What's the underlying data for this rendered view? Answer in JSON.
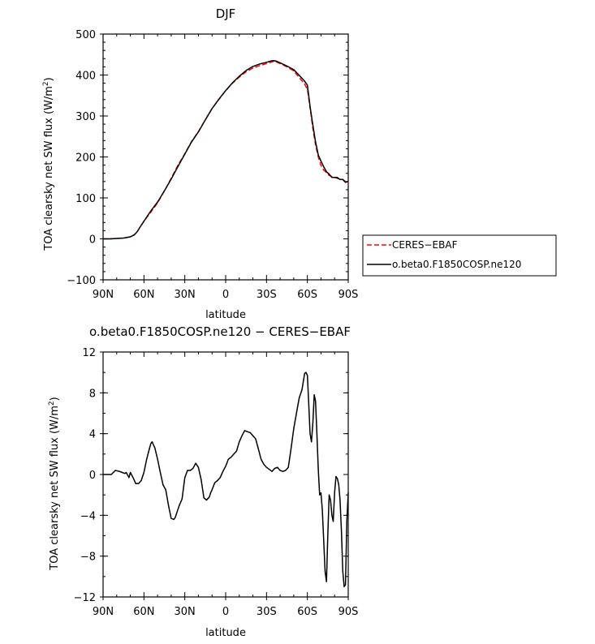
{
  "chart_data": [
    {
      "type": "line",
      "title": "DJF",
      "xlabel": "latitude",
      "ylabel_main": "TOA clearsky net SW flux (W/m",
      "ylabel_sup": "2",
      "ylabel_close": ")",
      "xlim": [
        -90,
        90
      ],
      "ylim": [
        -100,
        500
      ],
      "x_tick_labels": [
        "90N",
        "60N",
        "30N",
        "0",
        "30S",
        "60S",
        "90S"
      ],
      "y_tick_labels": [
        "−100",
        "0",
        "100",
        "200",
        "300",
        "400",
        "500"
      ],
      "legend": [
        "CERES−EBAF",
        "o.beta0.F1850COSP.ne120"
      ],
      "legend_position": "right",
      "series": [
        {
          "name": "CERES−EBAF",
          "color": "#ff0000",
          "dash": "dashed",
          "x": [
            -90,
            -85,
            -80,
            -75,
            -70,
            -67,
            -65,
            -63,
            -60,
            -55,
            -50,
            -45,
            -40,
            -35,
            -30,
            -25,
            -20,
            -15,
            -10,
            -5,
            0,
            5,
            10,
            15,
            20,
            25,
            30,
            33,
            35,
            37,
            40,
            45,
            50,
            53,
            56,
            58,
            60,
            62,
            64,
            66,
            68,
            70,
            72,
            74,
            76,
            78,
            80,
            82,
            84,
            86,
            88,
            90
          ],
          "y": [
            0,
            0,
            1,
            2,
            5,
            10,
            17,
            28,
            43,
            65,
            88,
            117,
            148,
            180,
            208,
            238,
            262,
            290,
            318,
            340,
            362,
            380,
            395,
            408,
            417,
            423,
            428,
            431,
            433,
            432,
            428,
            420,
            410,
            398,
            386,
            378,
            365,
            320,
            270,
            230,
            200,
            180,
            168,
            162,
            155,
            152,
            150,
            148,
            145,
            145,
            140,
            138
          ]
        },
        {
          "name": "o.beta0.F1850COSP.ne120",
          "color": "#000000",
          "dash": "solid",
          "x": [
            -90,
            -85,
            -80,
            -75,
            -70,
            -67,
            -65,
            -63,
            -60,
            -55,
            -50,
            -45,
            -40,
            -35,
            -30,
            -25,
            -20,
            -15,
            -10,
            -5,
            0,
            5,
            10,
            15,
            20,
            25,
            30,
            33,
            35,
            37,
            40,
            45,
            50,
            53,
            56,
            58,
            60,
            62,
            64,
            66,
            68,
            70,
            72,
            74,
            76,
            78,
            80,
            82,
            84,
            86,
            88,
            90
          ],
          "y": [
            0,
            0,
            1,
            2,
            5,
            10,
            17,
            28,
            43,
            68,
            90,
            117,
            146,
            177,
            207,
            237,
            261,
            290,
            318,
            341,
            362,
            381,
            397,
            411,
            421,
            427,
            431,
            434,
            435,
            434,
            430,
            422,
            413,
            403,
            392,
            385,
            375,
            323,
            278,
            237,
            205,
            190,
            176,
            164,
            158,
            150,
            150,
            150,
            145,
            145,
            138,
            140
          ]
        }
      ]
    },
    {
      "type": "line",
      "title": "o.beta0.F1850COSP.ne120 − CERES−EBAF",
      "xlabel": "latitude",
      "ylabel_main": "TOA clearsky net SW flux (W/m",
      "ylabel_sup": "2",
      "ylabel_close": ")",
      "xlim": [
        -90,
        90
      ],
      "ylim": [
        -12,
        12
      ],
      "x_tick_labels": [
        "90N",
        "60N",
        "30N",
        "0",
        "30S",
        "60S",
        "90S"
      ],
      "y_tick_labels": [
        "−12",
        "−8",
        "−4",
        "0",
        "4",
        "8",
        "12"
      ],
      "series": [
        {
          "name": "o.beta0.F1850COSP.ne120 − CERES−EBAF",
          "color": "#000000",
          "dash": "solid",
          "x": [
            -90,
            -84,
            -81,
            -78,
            -76,
            -74,
            -73,
            -71,
            -70,
            -68,
            -66,
            -64,
            -62,
            -60,
            -58,
            -56,
            -55,
            -54,
            -52,
            -50,
            -48,
            -46,
            -44,
            -42,
            -40,
            -38,
            -37,
            -36,
            -34,
            -32,
            -30,
            -28,
            -26,
            -24,
            -22,
            -20,
            -18,
            -16,
            -14,
            -12,
            -11,
            -10,
            -8,
            -6,
            -4,
            -2,
            0,
            2,
            4,
            6,
            8,
            10,
            12,
            14,
            16,
            18,
            20,
            22,
            24,
            26,
            28,
            30,
            32,
            34,
            36,
            38,
            40,
            42,
            44,
            46,
            48,
            50,
            52,
            54,
            56,
            58,
            59,
            60,
            61,
            62,
            63,
            64,
            65,
            66,
            67,
            68,
            69,
            70,
            71,
            72,
            73,
            74,
            75,
            76,
            77,
            78,
            79,
            80,
            81,
            82,
            83,
            84,
            85,
            86,
            87,
            88,
            89,
            90
          ],
          "y": [
            0,
            0,
            0.4,
            0.3,
            0.2,
            0.1,
            0.2,
            -0.3,
            0.2,
            -0.3,
            -0.9,
            -0.9,
            -0.6,
            0.2,
            1.5,
            2.5,
            3.0,
            3.2,
            2.6,
            1.5,
            0.2,
            -1.0,
            -1.5,
            -3.0,
            -4.3,
            -4.4,
            -4.2,
            -3.8,
            -3.0,
            -2.4,
            -0.3,
            0.4,
            0.4,
            0.6,
            1.1,
            0.7,
            -0.5,
            -2.3,
            -2.5,
            -2.2,
            -1.8,
            -1.5,
            -0.8,
            -0.6,
            -0.3,
            0.3,
            0.8,
            1.5,
            1.7,
            2.0,
            2.3,
            3.2,
            3.8,
            4.3,
            4.2,
            4.1,
            3.8,
            3.5,
            2.5,
            1.5,
            1.0,
            0.7,
            0.5,
            0.3,
            0.6,
            0.7,
            0.4,
            0.3,
            0.4,
            0.7,
            2.5,
            4.5,
            6.0,
            7.5,
            8.3,
            9.9,
            10.0,
            9.7,
            7.0,
            4.0,
            3.2,
            5.0,
            7.8,
            7.2,
            4.0,
            0.5,
            -2.0,
            -1.8,
            -3.5,
            -6.5,
            -9.5,
            -10.5,
            -6.0,
            -2.0,
            -2.5,
            -4.0,
            -4.6,
            -1.8,
            -0.2,
            -0.4,
            -1.0,
            -2.5,
            -5.5,
            -9.5,
            -11.0,
            -10.8,
            -4.5,
            -1.8
          ]
        }
      ]
    }
  ]
}
